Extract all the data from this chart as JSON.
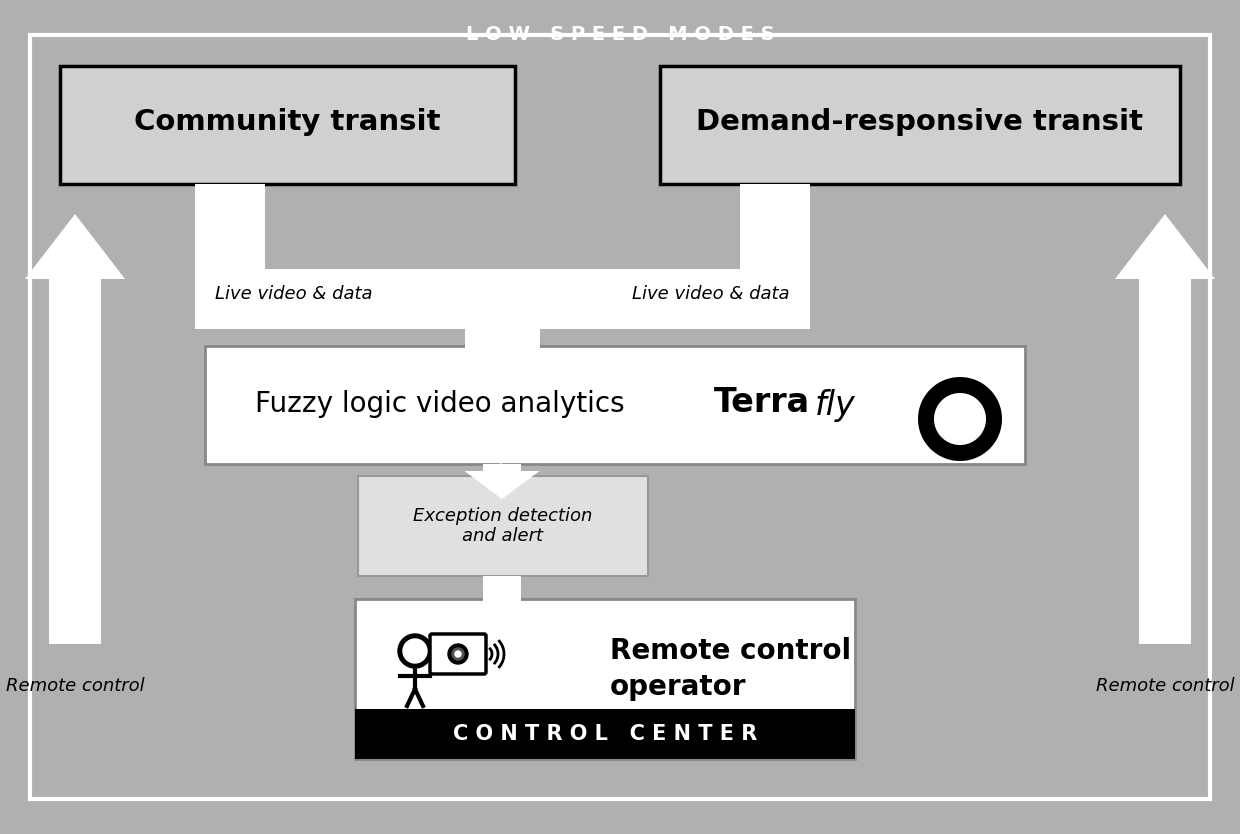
{
  "bg_color": "#b0b0b0",
  "white": "#ffffff",
  "black": "#000000",
  "light_gray": "#d0d0d0",
  "exc_gray": "#e0e0e0",
  "title_text": "L O W   S P E E D   M O D E S",
  "box1_text": "Community transit",
  "box2_text": "Demand-responsive transit",
  "arrow1_label": "Live video & data",
  "arrow2_label": "Live video & data",
  "fuzzy_text": "Fuzzy logic video analytics",
  "terra_text": "Terra",
  "fly_text": "fly",
  "exception_text": "Exception detection\nand alert",
  "operator_bold": "Remote control\noperator",
  "control_text": "C O N T R O L   C E N T E R",
  "left_arrow_label": "Remote control",
  "right_arrow_label": "Remote control"
}
